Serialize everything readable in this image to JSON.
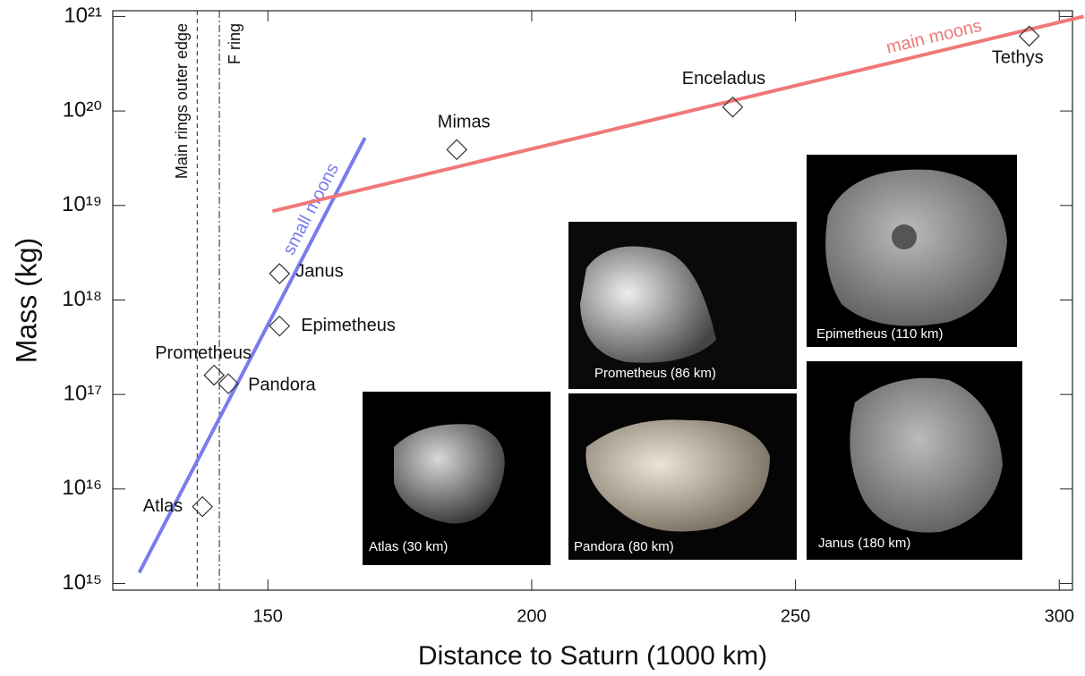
{
  "chart_data": {
    "type": "scatter",
    "x_label": "Distance to Saturn (1000 km)",
    "y_label": "Mass (kg)",
    "categories": [
      "Atlas",
      "Prometheus",
      "Pandora",
      "Epimetheus",
      "Janus",
      "Mimas",
      "Enceladus",
      "Tethys"
    ],
    "x": [
      137.6,
      139.8,
      142.5,
      152.2,
      152.2,
      185.8,
      238.1,
      294.3
    ],
    "values": [
      6500000000000000.0,
      1.6e+17,
      1.3e+17,
      5.3e+17,
      1.9e+18,
      3.9e+19,
      1.1e+20,
      6.2e+20
    ],
    "marker_color": "#333333",
    "xlim": [
      120.6,
      302.5
    ],
    "ylim": [
      850000000000000.0,
      1.15e+21
    ],
    "y_scale": "log",
    "xticks": [
      150,
      200,
      250,
      300
    ],
    "yticks": [
      {
        "value": 1000000000000000.0,
        "label": "10¹⁵"
      },
      {
        "value": 1e+16,
        "label": "10¹⁶"
      },
      {
        "value": 1e+17,
        "label": "10¹⁷"
      },
      {
        "value": 1e+18,
        "label": "10¹⁸"
      },
      {
        "value": 1e+19,
        "label": "10¹⁹"
      },
      {
        "value": 1e+20,
        "label": "10²⁰"
      },
      {
        "value": 1e+21,
        "label": "10²¹"
      }
    ],
    "trend_lines": [
      {
        "name": "small moons",
        "color": "#7b7bef",
        "x": [
          125.6,
          168.4
        ],
        "values": [
          1300000000000000.0,
          5.2e+19
        ]
      },
      {
        "name": "main moons",
        "color": "#f07878",
        "x": [
          150.85,
          304.6
        ],
        "values": [
          8.7e+18,
          1e+21
        ]
      }
    ],
    "reference_lines": [
      {
        "label": "Main rings outer edge",
        "x": 136.6,
        "style": "dashed"
      },
      {
        "label": "F ring",
        "x": 140.8,
        "style": "dashdot"
      }
    ]
  },
  "images": [
    {
      "caption": "Atlas (30 km)"
    },
    {
      "caption": "Prometheus (86 km)"
    },
    {
      "caption": "Pandora (80 km)"
    },
    {
      "caption": "Epimetheus (110 km)"
    },
    {
      "caption": "Janus (180 km)"
    }
  ]
}
